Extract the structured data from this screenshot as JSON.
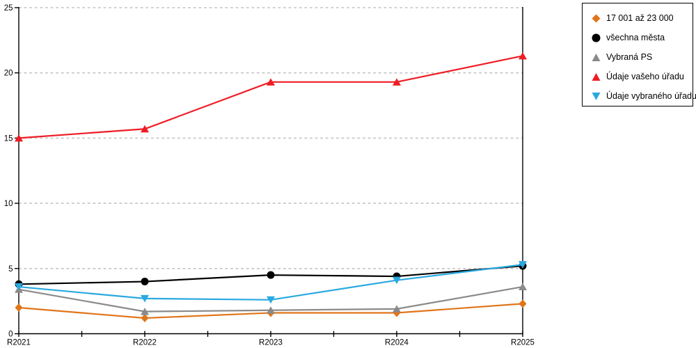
{
  "chart_data": {
    "type": "line",
    "categories": [
      "R2021",
      "R2022",
      "R2023",
      "R2024",
      "R2025"
    ],
    "series": [
      {
        "name": "17 001 až 23 000",
        "color": "#e0751a",
        "marker": "diamond",
        "values": [
          2.0,
          1.2,
          1.6,
          1.6,
          2.3
        ]
      },
      {
        "name": "všechna města",
        "color": "#000000",
        "marker": "circle",
        "values": [
          3.8,
          4.0,
          4.5,
          4.4,
          5.2
        ]
      },
      {
        "name": "Vybraná PS",
        "color": "#8a8a8a",
        "marker": "triangle-up",
        "values": [
          3.4,
          1.7,
          1.8,
          1.9,
          3.6
        ]
      },
      {
        "name": "Údaje vašeho úřadu",
        "color": "#ee1c25",
        "marker": "triangle-up",
        "values": [
          15.0,
          15.7,
          19.3,
          19.3,
          21.3
        ]
      },
      {
        "name": "Údaje vybraného úřadu",
        "color": "#29a9e0",
        "marker": "triangle-down",
        "values": [
          3.6,
          2.7,
          2.6,
          4.1,
          5.3
        ]
      }
    ],
    "title": "",
    "xlabel": "",
    "ylabel": "",
    "ylim": [
      0,
      25
    ],
    "yticks": [
      0,
      5,
      10,
      15,
      20,
      25
    ],
    "grid": "horizontal-dashed",
    "legend_position": "top-right"
  },
  "colors": {
    "background": "#ffffff",
    "axis": "#000000",
    "grid": "#c3c3c3",
    "legend_border": "#000000",
    "text": "#000000"
  }
}
